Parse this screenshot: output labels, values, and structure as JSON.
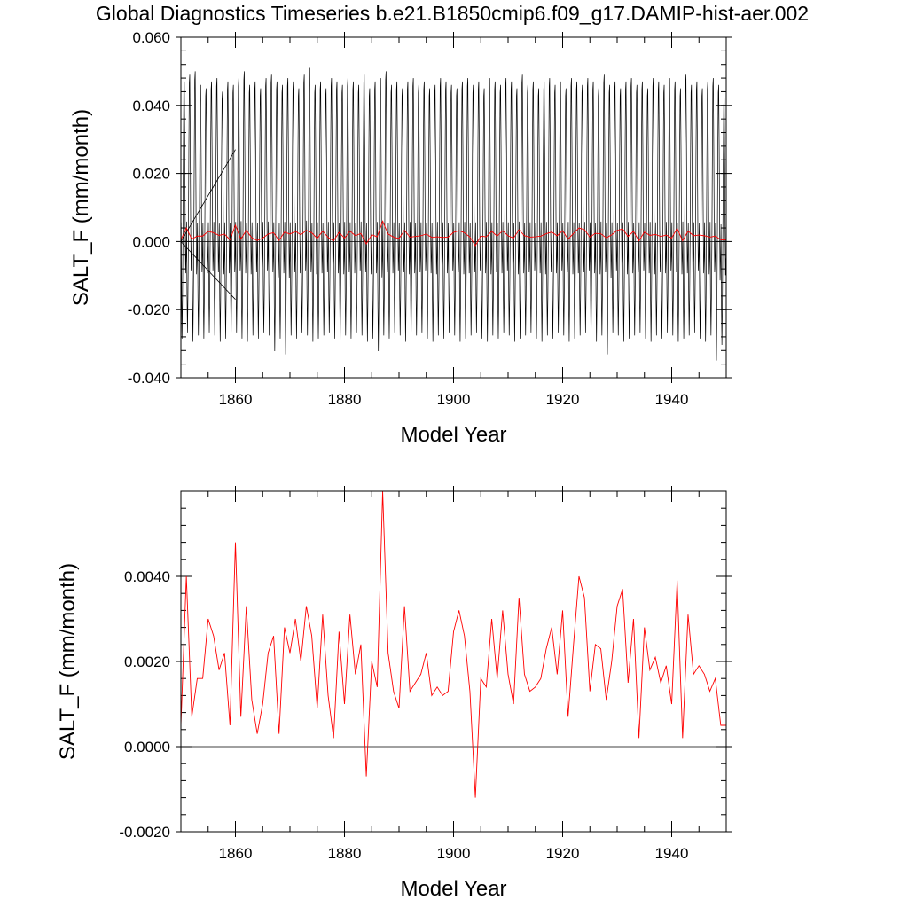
{
  "title": "Global Diagnostics Timeseries b.e21.B1850cmip6.f09_g17.DAMIP-hist-aer.002",
  "colors": {
    "monthly": "#000000",
    "annual": "#ff0000",
    "zero_line": "#000000"
  },
  "chart_data": [
    {
      "type": "line",
      "xlabel": "Model Year",
      "ylabel": "SALT_F (mm/month)",
      "xlim": [
        1850,
        1950
      ],
      "ylim": [
        -0.04,
        0.06
      ],
      "xticks": [
        1860,
        1880,
        1900,
        1920,
        1940
      ],
      "xtick_labels": [
        "1860",
        "1880",
        "1900",
        "1920",
        "1940"
      ],
      "yticks": [
        -0.04,
        -0.02,
        0.0,
        0.02,
        0.04,
        0.06
      ],
      "ytick_labels": [
        "-0.040",
        "-0.020",
        "0.000",
        "0.020",
        "0.040",
        "0.060"
      ],
      "series": [
        {
          "kind": "monthly",
          "color": "#000000",
          "note": "monthly values oscillate seasonally between roughly -0.035 and +0.048",
          "annual_max": [
            0.047,
            0.049,
            0.05,
            0.046,
            0.045,
            0.047,
            0.048,
            0.044,
            0.047,
            0.046,
            0.048,
            0.05,
            0.046,
            0.047,
            0.045,
            0.048,
            0.049,
            0.047,
            0.046,
            0.048,
            0.047,
            0.045,
            0.049,
            0.051,
            0.046,
            0.047,
            0.045,
            0.048,
            0.047,
            0.046,
            0.048,
            0.047,
            0.046,
            0.049,
            0.045,
            0.047,
            0.048,
            0.05,
            0.046,
            0.047,
            0.045,
            0.047,
            0.048,
            0.046,
            0.047,
            0.045,
            0.046,
            0.048,
            0.047,
            0.046,
            0.045,
            0.047,
            0.048,
            0.046,
            0.047,
            0.045,
            0.048,
            0.047,
            0.046,
            0.048,
            0.047,
            0.045,
            0.049,
            0.046,
            0.047,
            0.045,
            0.047,
            0.048,
            0.046,
            0.047,
            0.045,
            0.048,
            0.047,
            0.046,
            0.048,
            0.047,
            0.045,
            0.049,
            0.046,
            0.047,
            0.045,
            0.047,
            0.048,
            0.046,
            0.047,
            0.045,
            0.048,
            0.047,
            0.046,
            0.048,
            0.047,
            0.045,
            0.049,
            0.046,
            0.047,
            0.045,
            0.047,
            0.048,
            0.046,
            0.042
          ],
          "annual_min": [
            -0.031,
            -0.029,
            -0.032,
            -0.03,
            -0.031,
            -0.029,
            -0.03,
            -0.032,
            -0.031,
            -0.03,
            -0.029,
            -0.031,
            -0.032,
            -0.03,
            -0.031,
            -0.029,
            -0.03,
            -0.035,
            -0.031,
            -0.036,
            -0.03,
            -0.031,
            -0.029,
            -0.03,
            -0.032,
            -0.031,
            -0.03,
            -0.029,
            -0.031,
            -0.032,
            -0.03,
            -0.031,
            -0.029,
            -0.03,
            -0.032,
            -0.031,
            -0.035,
            -0.03,
            -0.031,
            -0.029,
            -0.03,
            -0.032,
            -0.031,
            -0.03,
            -0.029,
            -0.031,
            -0.032,
            -0.03,
            -0.031,
            -0.029,
            -0.03,
            -0.032,
            -0.031,
            -0.03,
            -0.029,
            -0.031,
            -0.032,
            -0.03,
            -0.031,
            -0.029,
            -0.03,
            -0.032,
            -0.031,
            -0.03,
            -0.029,
            -0.031,
            -0.032,
            -0.03,
            -0.031,
            -0.029,
            -0.03,
            -0.032,
            -0.031,
            -0.03,
            -0.029,
            -0.031,
            -0.032,
            -0.03,
            -0.036,
            -0.029,
            -0.03,
            -0.032,
            -0.031,
            -0.03,
            -0.029,
            -0.031,
            -0.032,
            -0.03,
            -0.031,
            -0.029,
            -0.03,
            -0.032,
            -0.031,
            -0.03,
            -0.029,
            -0.031,
            -0.032,
            -0.03,
            -0.038,
            -0.033
          ]
        },
        {
          "kind": "annual",
          "color": "#ff0000",
          "x": [
            1850,
            1851,
            1852,
            1853,
            1854,
            1855,
            1856,
            1857,
            1858,
            1859,
            1860,
            1861,
            1862,
            1863,
            1864,
            1865,
            1866,
            1867,
            1868,
            1869,
            1870,
            1871,
            1872,
            1873,
            1874,
            1875,
            1876,
            1877,
            1878,
            1879,
            1880,
            1881,
            1882,
            1883,
            1884,
            1885,
            1886,
            1887,
            1888,
            1889,
            1890,
            1891,
            1892,
            1893,
            1894,
            1895,
            1896,
            1897,
            1898,
            1899,
            1900,
            1901,
            1902,
            1903,
            1904,
            1905,
            1906,
            1907,
            1908,
            1909,
            1910,
            1911,
            1912,
            1913,
            1914,
            1915,
            1916,
            1917,
            1918,
            1919,
            1920,
            1921,
            1922,
            1923,
            1924,
            1925,
            1926,
            1927,
            1928,
            1929,
            1930,
            1931,
            1932,
            1933,
            1934,
            1935,
            1936,
            1937,
            1938,
            1939,
            1940,
            1941,
            1942,
            1943,
            1944,
            1945,
            1946,
            1947,
            1948,
            1949,
            1950
          ],
          "y": [
            0.0005,
            0.004,
            0.0007,
            0.0016,
            0.0016,
            0.003,
            0.0026,
            0.0018,
            0.0022,
            0.0005,
            0.0048,
            0.0007,
            0.0033,
            0.0011,
            0.0003,
            0.001,
            0.0022,
            0.0026,
            0.0003,
            0.0028,
            0.0022,
            0.003,
            0.002,
            0.0033,
            0.0026,
            0.0009,
            0.0031,
            0.0012,
            0.0002,
            0.0027,
            0.001,
            0.0031,
            0.0017,
            0.0024,
            -0.0007,
            0.002,
            0.0014,
            0.006,
            0.0022,
            0.0013,
            0.0009,
            0.0033,
            0.0013,
            0.0015,
            0.0017,
            0.0022,
            0.0012,
            0.0014,
            0.0012,
            0.0013,
            0.0027,
            0.0032,
            0.0026,
            0.0013,
            -0.0012,
            0.0016,
            0.0014,
            0.003,
            0.0016,
            0.0032,
            0.0017,
            0.001,
            0.0035,
            0.0017,
            0.0013,
            0.0014,
            0.0016,
            0.0023,
            0.0028,
            0.0017,
            0.0032,
            0.0007,
            0.0024,
            0.004,
            0.0035,
            0.0013,
            0.0024,
            0.0023,
            0.0011,
            0.002,
            0.0033,
            0.0037,
            0.0015,
            0.003,
            0.0002,
            0.0028,
            0.0018,
            0.0021,
            0.0015,
            0.0019,
            0.001,
            0.0039,
            0.0002,
            0.0031,
            0.0017,
            0.0019,
            0.0017,
            0.0013,
            0.0016,
            0.0005,
            0.0005
          ]
        }
      ]
    },
    {
      "type": "line",
      "xlabel": "Model Year",
      "ylabel": "SALT_F (mm/month)",
      "xlim": [
        1850,
        1950
      ],
      "ylim": [
        -0.002,
        0.006
      ],
      "xticks": [
        1860,
        1880,
        1900,
        1920,
        1940
      ],
      "xtick_labels": [
        "1860",
        "1880",
        "1900",
        "1920",
        "1940"
      ],
      "yticks": [
        -0.002,
        0.0,
        0.002,
        0.004
      ],
      "ytick_labels": [
        "-0.0020",
        "0.0000",
        "0.0020",
        "0.0040"
      ],
      "series": [
        {
          "kind": "annual",
          "color": "#ff0000",
          "x": [
            1850,
            1851,
            1852,
            1853,
            1854,
            1855,
            1856,
            1857,
            1858,
            1859,
            1860,
            1861,
            1862,
            1863,
            1864,
            1865,
            1866,
            1867,
            1868,
            1869,
            1870,
            1871,
            1872,
            1873,
            1874,
            1875,
            1876,
            1877,
            1878,
            1879,
            1880,
            1881,
            1882,
            1883,
            1884,
            1885,
            1886,
            1887,
            1888,
            1889,
            1890,
            1891,
            1892,
            1893,
            1894,
            1895,
            1896,
            1897,
            1898,
            1899,
            1900,
            1901,
            1902,
            1903,
            1904,
            1905,
            1906,
            1907,
            1908,
            1909,
            1910,
            1911,
            1912,
            1913,
            1914,
            1915,
            1916,
            1917,
            1918,
            1919,
            1920,
            1921,
            1922,
            1923,
            1924,
            1925,
            1926,
            1927,
            1928,
            1929,
            1930,
            1931,
            1932,
            1933,
            1934,
            1935,
            1936,
            1937,
            1938,
            1939,
            1940,
            1941,
            1942,
            1943,
            1944,
            1945,
            1946,
            1947,
            1948,
            1949,
            1950
          ],
          "y": [
            0.0005,
            0.004,
            0.0007,
            0.0016,
            0.0016,
            0.003,
            0.0026,
            0.0018,
            0.0022,
            0.0005,
            0.0048,
            0.0007,
            0.0033,
            0.0011,
            0.0003,
            0.001,
            0.0022,
            0.0026,
            0.0003,
            0.0028,
            0.0022,
            0.003,
            0.002,
            0.0033,
            0.0026,
            0.0009,
            0.0031,
            0.0012,
            0.0002,
            0.0027,
            0.001,
            0.0031,
            0.0017,
            0.0024,
            -0.0007,
            0.002,
            0.0014,
            0.006,
            0.0022,
            0.0013,
            0.0009,
            0.0033,
            0.0013,
            0.0015,
            0.0017,
            0.0022,
            0.0012,
            0.0014,
            0.0012,
            0.0013,
            0.0027,
            0.0032,
            0.0026,
            0.0013,
            -0.0012,
            0.0016,
            0.0014,
            0.003,
            0.0016,
            0.0032,
            0.0017,
            0.001,
            0.0035,
            0.0017,
            0.0013,
            0.0014,
            0.0016,
            0.0023,
            0.0028,
            0.0017,
            0.0032,
            0.0007,
            0.0024,
            0.004,
            0.0035,
            0.0013,
            0.0024,
            0.0023,
            0.0011,
            0.002,
            0.0033,
            0.0037,
            0.0015,
            0.003,
            0.0002,
            0.0028,
            0.0018,
            0.0021,
            0.0015,
            0.0019,
            0.001,
            0.0039,
            0.0002,
            0.0031,
            0.0017,
            0.0019,
            0.0017,
            0.0013,
            0.0016,
            0.0005,
            0.0005
          ]
        }
      ]
    }
  ]
}
